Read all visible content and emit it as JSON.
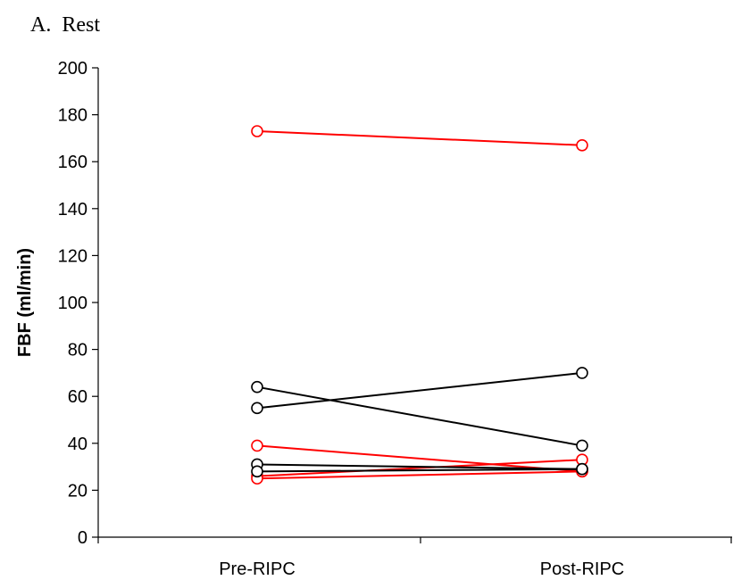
{
  "chart_data": {
    "type": "line",
    "title": "A.  Rest",
    "ylabel": "FBF (ml/min)",
    "xlabel": "",
    "categories": [
      "Pre-RIPC",
      "Post-RIPC"
    ],
    "ylim": [
      0,
      200
    ],
    "yticks": [
      0,
      20,
      40,
      60,
      80,
      100,
      120,
      140,
      160,
      180,
      200
    ],
    "grid": false,
    "legend": "none",
    "series": [
      {
        "color": "#ff0000",
        "values": [
          173,
          167
        ]
      },
      {
        "color": "#ff0000",
        "values": [
          39,
          28
        ]
      },
      {
        "color": "#ff0000",
        "values": [
          26,
          33
        ]
      },
      {
        "color": "#ff0000",
        "values": [
          25,
          28
        ]
      },
      {
        "color": "#000000",
        "values": [
          64,
          39
        ]
      },
      {
        "color": "#000000",
        "values": [
          55,
          70
        ]
      },
      {
        "color": "#000000",
        "values": [
          31,
          29
        ]
      },
      {
        "color": "#000000",
        "values": [
          28,
          29
        ]
      }
    ]
  }
}
